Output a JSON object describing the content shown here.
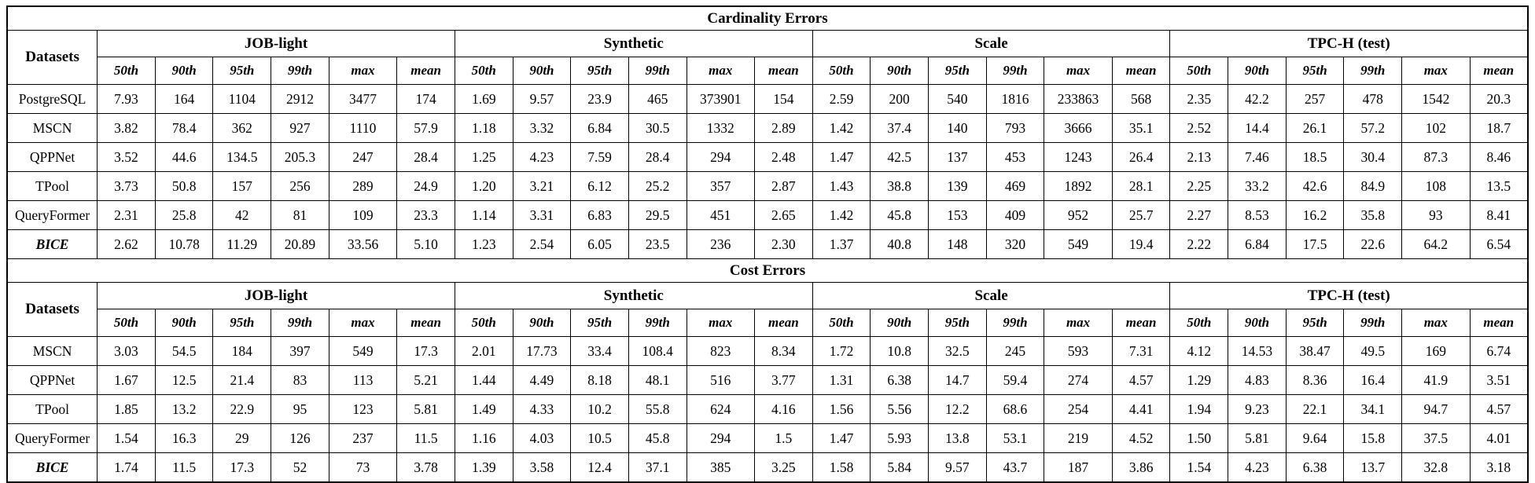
{
  "table": {
    "datasets_label": "Datasets",
    "groups": [
      "JOB-light",
      "Synthetic",
      "Scale",
      "TPC-H (test)"
    ],
    "columns_per_group": [
      "50th",
      "90th",
      "95th",
      "99th",
      "max",
      "mean"
    ],
    "sections": [
      {
        "title": "Cardinality Errors",
        "rows": [
          {
            "name": "PostgreSQL",
            "emphasis": false,
            "values": [
              "7.93",
              "164",
              "1104",
              "2912",
              "3477",
              "174",
              "1.69",
              "9.57",
              "23.9",
              "465",
              "373901",
              "154",
              "2.59",
              "200",
              "540",
              "1816",
              "233863",
              "568",
              "2.35",
              "42.2",
              "257",
              "478",
              "1542",
              "20.3"
            ],
            "bold_indices": []
          },
          {
            "name": "MSCN",
            "emphasis": false,
            "values": [
              "3.82",
              "78.4",
              "362",
              "927",
              "1110",
              "57.9",
              "1.18",
              "3.32",
              "6.84",
              "30.5",
              "1332",
              "2.89",
              "1.42",
              "37.4",
              "140",
              "793",
              "3666",
              "35.1",
              "2.52",
              "14.4",
              "26.1",
              "57.2",
              "102",
              "18.7"
            ],
            "bold_indices": []
          },
          {
            "name": "QPPNet",
            "emphasis": false,
            "values": [
              "3.52",
              "44.6",
              "134.5",
              "205.3",
              "247",
              "28.4",
              "1.25",
              "4.23",
              "7.59",
              "28.4",
              "294",
              "2.48",
              "1.47",
              "42.5",
              "137",
              "453",
              "1243",
              "26.4",
              "2.13",
              "7.46",
              "18.5",
              "30.4",
              "87.3",
              "8.46"
            ],
            "bold_indices": []
          },
          {
            "name": "TPool",
            "emphasis": false,
            "values": [
              "3.73",
              "50.8",
              "157",
              "256",
              "289",
              "24.9",
              "1.20",
              "3.21",
              "6.12",
              "25.2",
              "357",
              "2.87",
              "1.43",
              "38.8",
              "139",
              "469",
              "1892",
              "28.1",
              "2.25",
              "33.2",
              "42.6",
              "84.9",
              "108",
              "13.5"
            ],
            "bold_indices": [
              13
            ]
          },
          {
            "name": "QueryFormer",
            "emphasis": false,
            "values": [
              "2.31",
              "25.8",
              "42",
              "81",
              "109",
              "23.3",
              "1.14",
              "3.31",
              "6.83",
              "29.5",
              "451",
              "2.65",
              "1.42",
              "45.8",
              "153",
              "409",
              "952",
              "25.7",
              "2.27",
              "8.53",
              "16.2",
              "35.8",
              "93",
              "8.41"
            ],
            "bold_indices": [
              0,
              6,
              20
            ]
          },
          {
            "name": "BICE",
            "emphasis": true,
            "values": [
              "2.62",
              "10.78",
              "11.29",
              "20.89",
              "33.56",
              "5.10",
              "1.23",
              "2.54",
              "6.05",
              "23.5",
              "236",
              "2.30",
              "1.37",
              "40.8",
              "148",
              "320",
              "549",
              "19.4",
              "2.22",
              "6.84",
              "17.5",
              "22.6",
              "64.2",
              "6.54"
            ],
            "bold_indices": [
              1,
              2,
              3,
              4,
              5,
              7,
              8,
              9,
              10,
              11,
              12,
              14,
              15,
              16,
              17,
              18,
              19,
              21,
              22,
              23
            ]
          }
        ]
      },
      {
        "title": "Cost Errors",
        "rows": [
          {
            "name": "MSCN",
            "emphasis": false,
            "values": [
              "3.03",
              "54.5",
              "184",
              "397",
              "549",
              "17.3",
              "2.01",
              "17.73",
              "33.4",
              "108.4",
              "823",
              "8.34",
              "1.72",
              "10.8",
              "32.5",
              "245",
              "593",
              "7.31",
              "4.12",
              "14.53",
              "38.47",
              "49.5",
              "169",
              "6.74"
            ],
            "bold_indices": []
          },
          {
            "name": "QPPNet",
            "emphasis": false,
            "values": [
              "1.67",
              "12.5",
              "21.4",
              "83",
              "113",
              "5.21",
              "1.44",
              "4.49",
              "8.18",
              "48.1",
              "516",
              "3.77",
              "1.31",
              "6.38",
              "14.7",
              "59.4",
              "274",
              "4.57",
              "1.29",
              "4.83",
              "8.36",
              "16.4",
              "41.9",
              "3.51"
            ],
            "bold_indices": [
              8,
              12,
              18
            ]
          },
          {
            "name": "TPool",
            "emphasis": false,
            "values": [
              "1.85",
              "13.2",
              "22.9",
              "95",
              "123",
              "5.81",
              "1.49",
              "4.33",
              "10.2",
              "55.8",
              "624",
              "4.16",
              "1.56",
              "5.56",
              "12.2",
              "68.6",
              "254",
              "4.41",
              "1.94",
              "9.23",
              "22.1",
              "34.1",
              "94.7",
              "4.57"
            ],
            "bold_indices": [
              13
            ]
          },
          {
            "name": "QueryFormer",
            "emphasis": false,
            "values": [
              "1.54",
              "16.3",
              "29",
              "126",
              "237",
              "11.5",
              "1.16",
              "4.03",
              "10.5",
              "45.8",
              "294",
              "1.5",
              "1.47",
              "5.93",
              "13.8",
              "53.1",
              "219",
              "4.52",
              "1.50",
              "5.81",
              "9.64",
              "15.8",
              "37.5",
              "4.01"
            ],
            "bold_indices": [
              0,
              6,
              10,
              11
            ]
          },
          {
            "name": "BICE",
            "emphasis": true,
            "values": [
              "1.74",
              "11.5",
              "17.3",
              "52",
              "73",
              "3.78",
              "1.39",
              "3.58",
              "12.4",
              "37.1",
              "385",
              "3.25",
              "1.58",
              "5.84",
              "9.57",
              "43.7",
              "187",
              "3.86",
              "1.54",
              "4.23",
              "6.38",
              "13.7",
              "32.8",
              "3.18"
            ],
            "bold_indices": [
              1,
              2,
              3,
              4,
              5,
              7,
              9,
              14,
              15,
              16,
              17,
              19,
              20,
              21,
              22,
              23
            ]
          }
        ]
      }
    ]
  }
}
